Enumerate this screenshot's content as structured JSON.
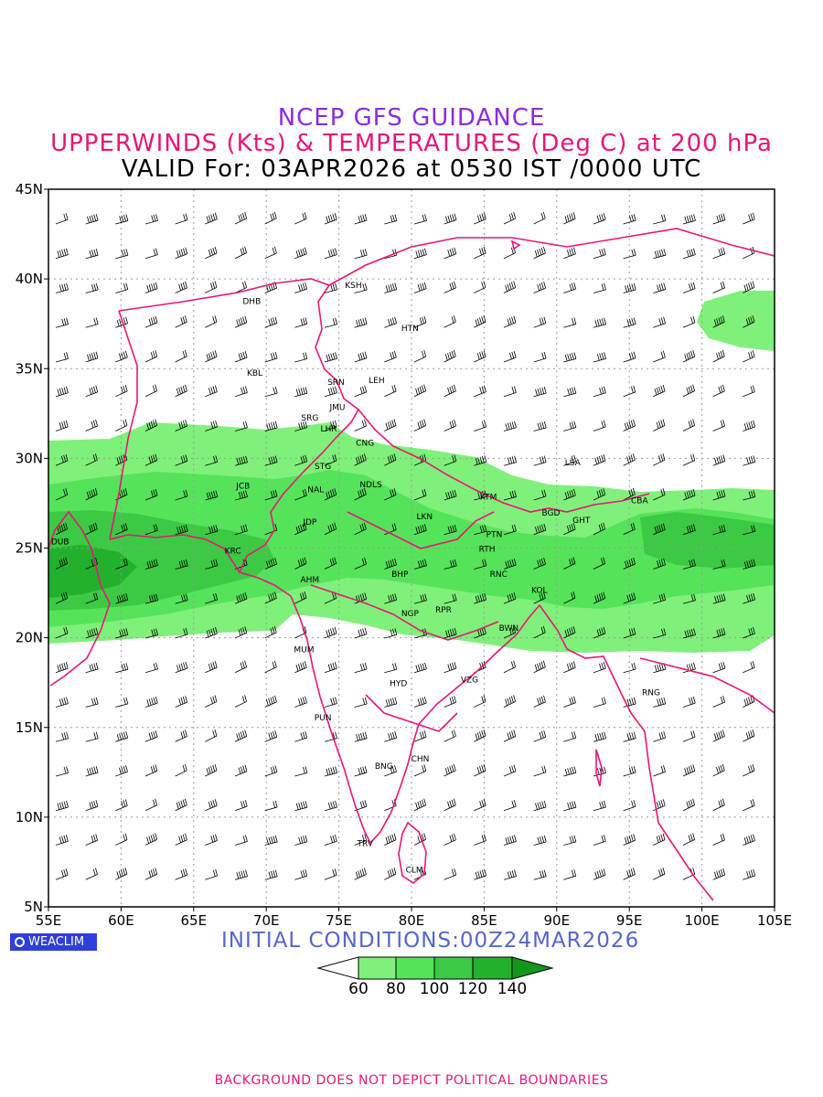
{
  "title": {
    "line1": "NCEP GFS GUIDANCE",
    "line2": "UPPERWINDS (Kts) & TEMPERATURES (Deg C) at 200 hPa",
    "line3": "VALID For: 03APR2026 at 0530 IST /0000 UTC"
  },
  "colors": {
    "title_line1": "#8a2be2",
    "title_line2": "#e8157a",
    "boundaries": "#e8157a",
    "temperature_labels": "#2a3cdc",
    "grid": "#999999",
    "shade_60": "#7ff07a",
    "shade_80": "#55e35a",
    "shade_100": "#3cc944",
    "shade_120": "#22b12d",
    "shade_140": "#12961c"
  },
  "map": {
    "lon_range": [
      55,
      105
    ],
    "lat_range": [
      5,
      45
    ],
    "x_ticks": [
      "55E",
      "60E",
      "65E",
      "70E",
      "75E",
      "80E",
      "85E",
      "90E",
      "95E",
      "100E",
      "105E"
    ],
    "y_ticks": [
      "5N",
      "10N",
      "15N",
      "20N",
      "25N",
      "30N",
      "35N",
      "40N",
      "45N"
    ],
    "stations": [
      {
        "code": "KSH",
        "lon": 76.0,
        "lat": 39.5
      },
      {
        "code": "DHB",
        "lon": 69.0,
        "lat": 38.6
      },
      {
        "code": "HTN",
        "lon": 79.9,
        "lat": 37.1
      },
      {
        "code": "KBL",
        "lon": 69.2,
        "lat": 34.6
      },
      {
        "code": "SRN",
        "lon": 74.8,
        "lat": 34.1
      },
      {
        "code": "LEH",
        "lon": 77.6,
        "lat": 34.2
      },
      {
        "code": "JMU",
        "lon": 74.9,
        "lat": 32.7
      },
      {
        "code": "SRG",
        "lon": 73.0,
        "lat": 32.1
      },
      {
        "code": "LHR",
        "lon": 74.3,
        "lat": 31.5
      },
      {
        "code": "CNG",
        "lon": 76.8,
        "lat": 30.7
      },
      {
        "code": "STG",
        "lon": 73.9,
        "lat": 29.4
      },
      {
        "code": "LSA",
        "lon": 91.1,
        "lat": 29.6
      },
      {
        "code": "JCB",
        "lon": 68.4,
        "lat": 28.3
      },
      {
        "code": "NAL",
        "lon": 73.4,
        "lat": 28.1
      },
      {
        "code": "NDLS",
        "lon": 77.2,
        "lat": 28.4
      },
      {
        "code": "KTM",
        "lon": 85.3,
        "lat": 27.7
      },
      {
        "code": "CBA",
        "lon": 95.7,
        "lat": 27.5
      },
      {
        "code": "BGD",
        "lon": 89.6,
        "lat": 26.8
      },
      {
        "code": "GHT",
        "lon": 91.7,
        "lat": 26.4
      },
      {
        "code": "LKN",
        "lon": 80.9,
        "lat": 26.6
      },
      {
        "code": "JDP",
        "lon": 73.0,
        "lat": 26.3
      },
      {
        "code": "PTN",
        "lon": 85.7,
        "lat": 25.6
      },
      {
        "code": "DUB",
        "lon": 55.8,
        "lat": 25.2
      },
      {
        "code": "RTH",
        "lon": 85.2,
        "lat": 24.8
      },
      {
        "code": "KRC",
        "lon": 67.7,
        "lat": 24.7
      },
      {
        "code": "BHP",
        "lon": 79.2,
        "lat": 23.4
      },
      {
        "code": "AHM",
        "lon": 73.0,
        "lat": 23.1
      },
      {
        "code": "RNC",
        "lon": 86.0,
        "lat": 23.4
      },
      {
        "code": "KOL",
        "lon": 88.8,
        "lat": 22.5
      },
      {
        "code": "NGP",
        "lon": 79.9,
        "lat": 21.2
      },
      {
        "code": "RPR",
        "lon": 82.2,
        "lat": 21.4
      },
      {
        "code": "BWN",
        "lon": 86.7,
        "lat": 20.4
      },
      {
        "code": "MUM",
        "lon": 72.6,
        "lat": 19.2
      },
      {
        "code": "HYD",
        "lon": 79.1,
        "lat": 17.3
      },
      {
        "code": "VZG",
        "lon": 84.0,
        "lat": 17.5
      },
      {
        "code": "RNG",
        "lon": 96.5,
        "lat": 16.8
      },
      {
        "code": "PUN",
        "lon": 73.9,
        "lat": 15.4
      },
      {
        "code": "CHN",
        "lon": 80.6,
        "lat": 13.1
      },
      {
        "code": "BNG",
        "lon": 78.1,
        "lat": 12.7
      },
      {
        "code": "TRV",
        "lon": 76.8,
        "lat": 8.4
      },
      {
        "code": "CLM",
        "lon": 80.2,
        "lat": 6.9
      }
    ]
  },
  "initial_conditions": "INITIAL CONDITIONS:00Z24MAR2026",
  "colorbar": {
    "labels": [
      "60",
      "80",
      "100",
      "120",
      "140"
    ]
  },
  "brand": "WEACLIM",
  "footer": "BACKGROUND DOES NOT DEPICT POLITICAL BOUNDARIES"
}
